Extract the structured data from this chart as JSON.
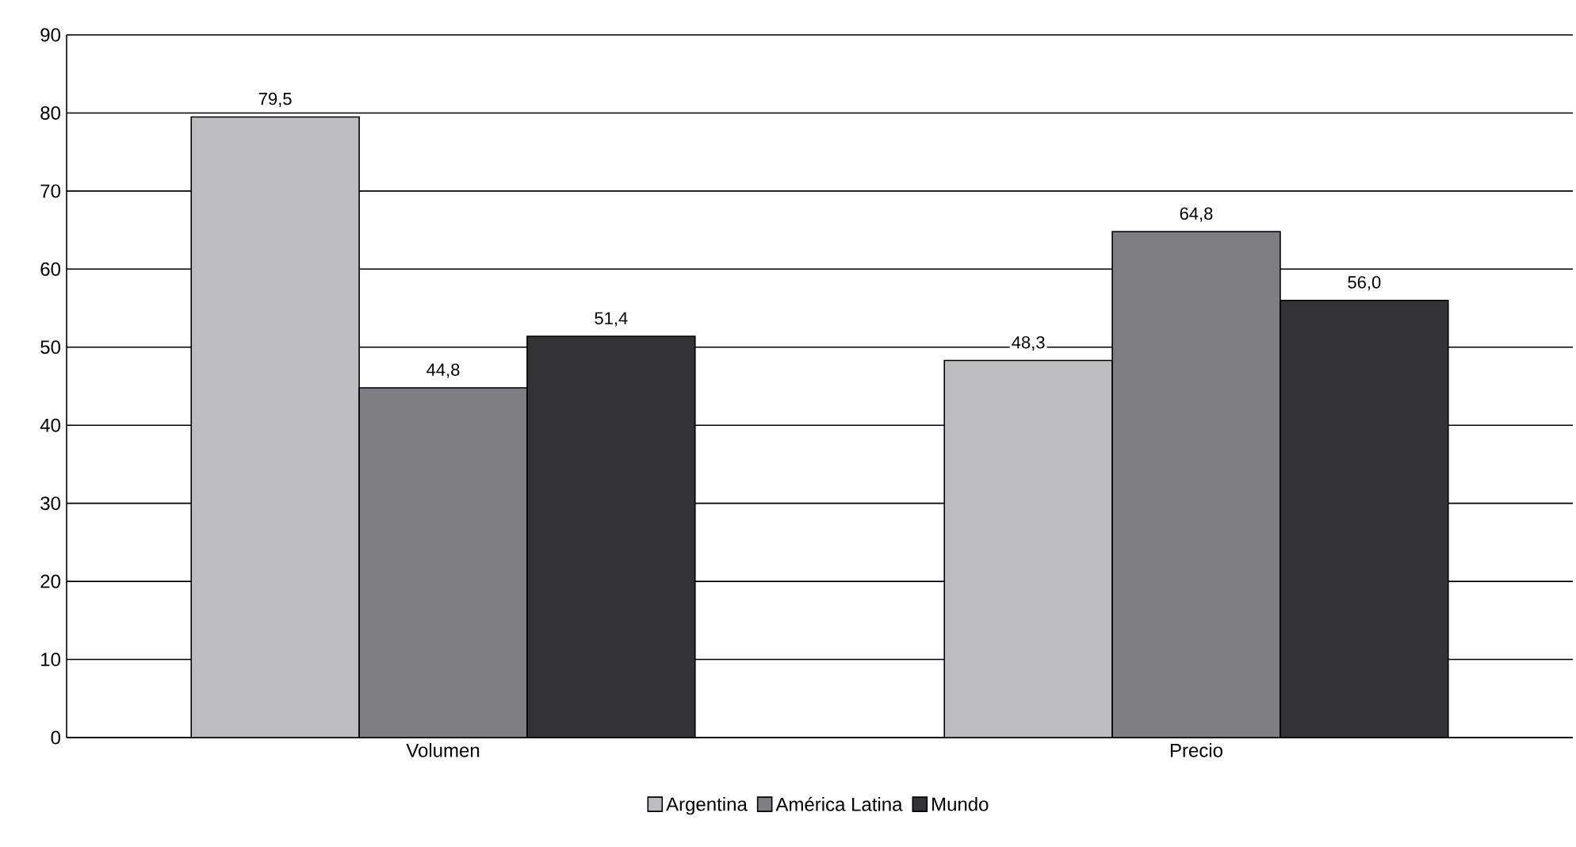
{
  "chart_data": {
    "type": "bar",
    "categories": [
      "Volumen",
      "Precio"
    ],
    "series": [
      {
        "name": "Argentina",
        "color": "#bdbdbf",
        "values": [
          79.5,
          48.3
        ],
        "value_labels": [
          "79,5",
          "48,3"
        ]
      },
      {
        "name": "América Latina",
        "color": "#7f7f83",
        "values": [
          44.8,
          64.8
        ],
        "value_labels": [
          "44,8",
          "64,8"
        ]
      },
      {
        "name": "Mundo",
        "color": "#333335",
        "values": [
          51.4,
          56.0
        ],
        "value_labels": [
          "51,4",
          "56,0"
        ]
      }
    ],
    "ylim": [
      0,
      90
    ],
    "yticks": [
      0,
      10,
      20,
      30,
      40,
      50,
      60,
      70,
      80,
      90
    ],
    "grid": "y",
    "legend": "bottom"
  }
}
